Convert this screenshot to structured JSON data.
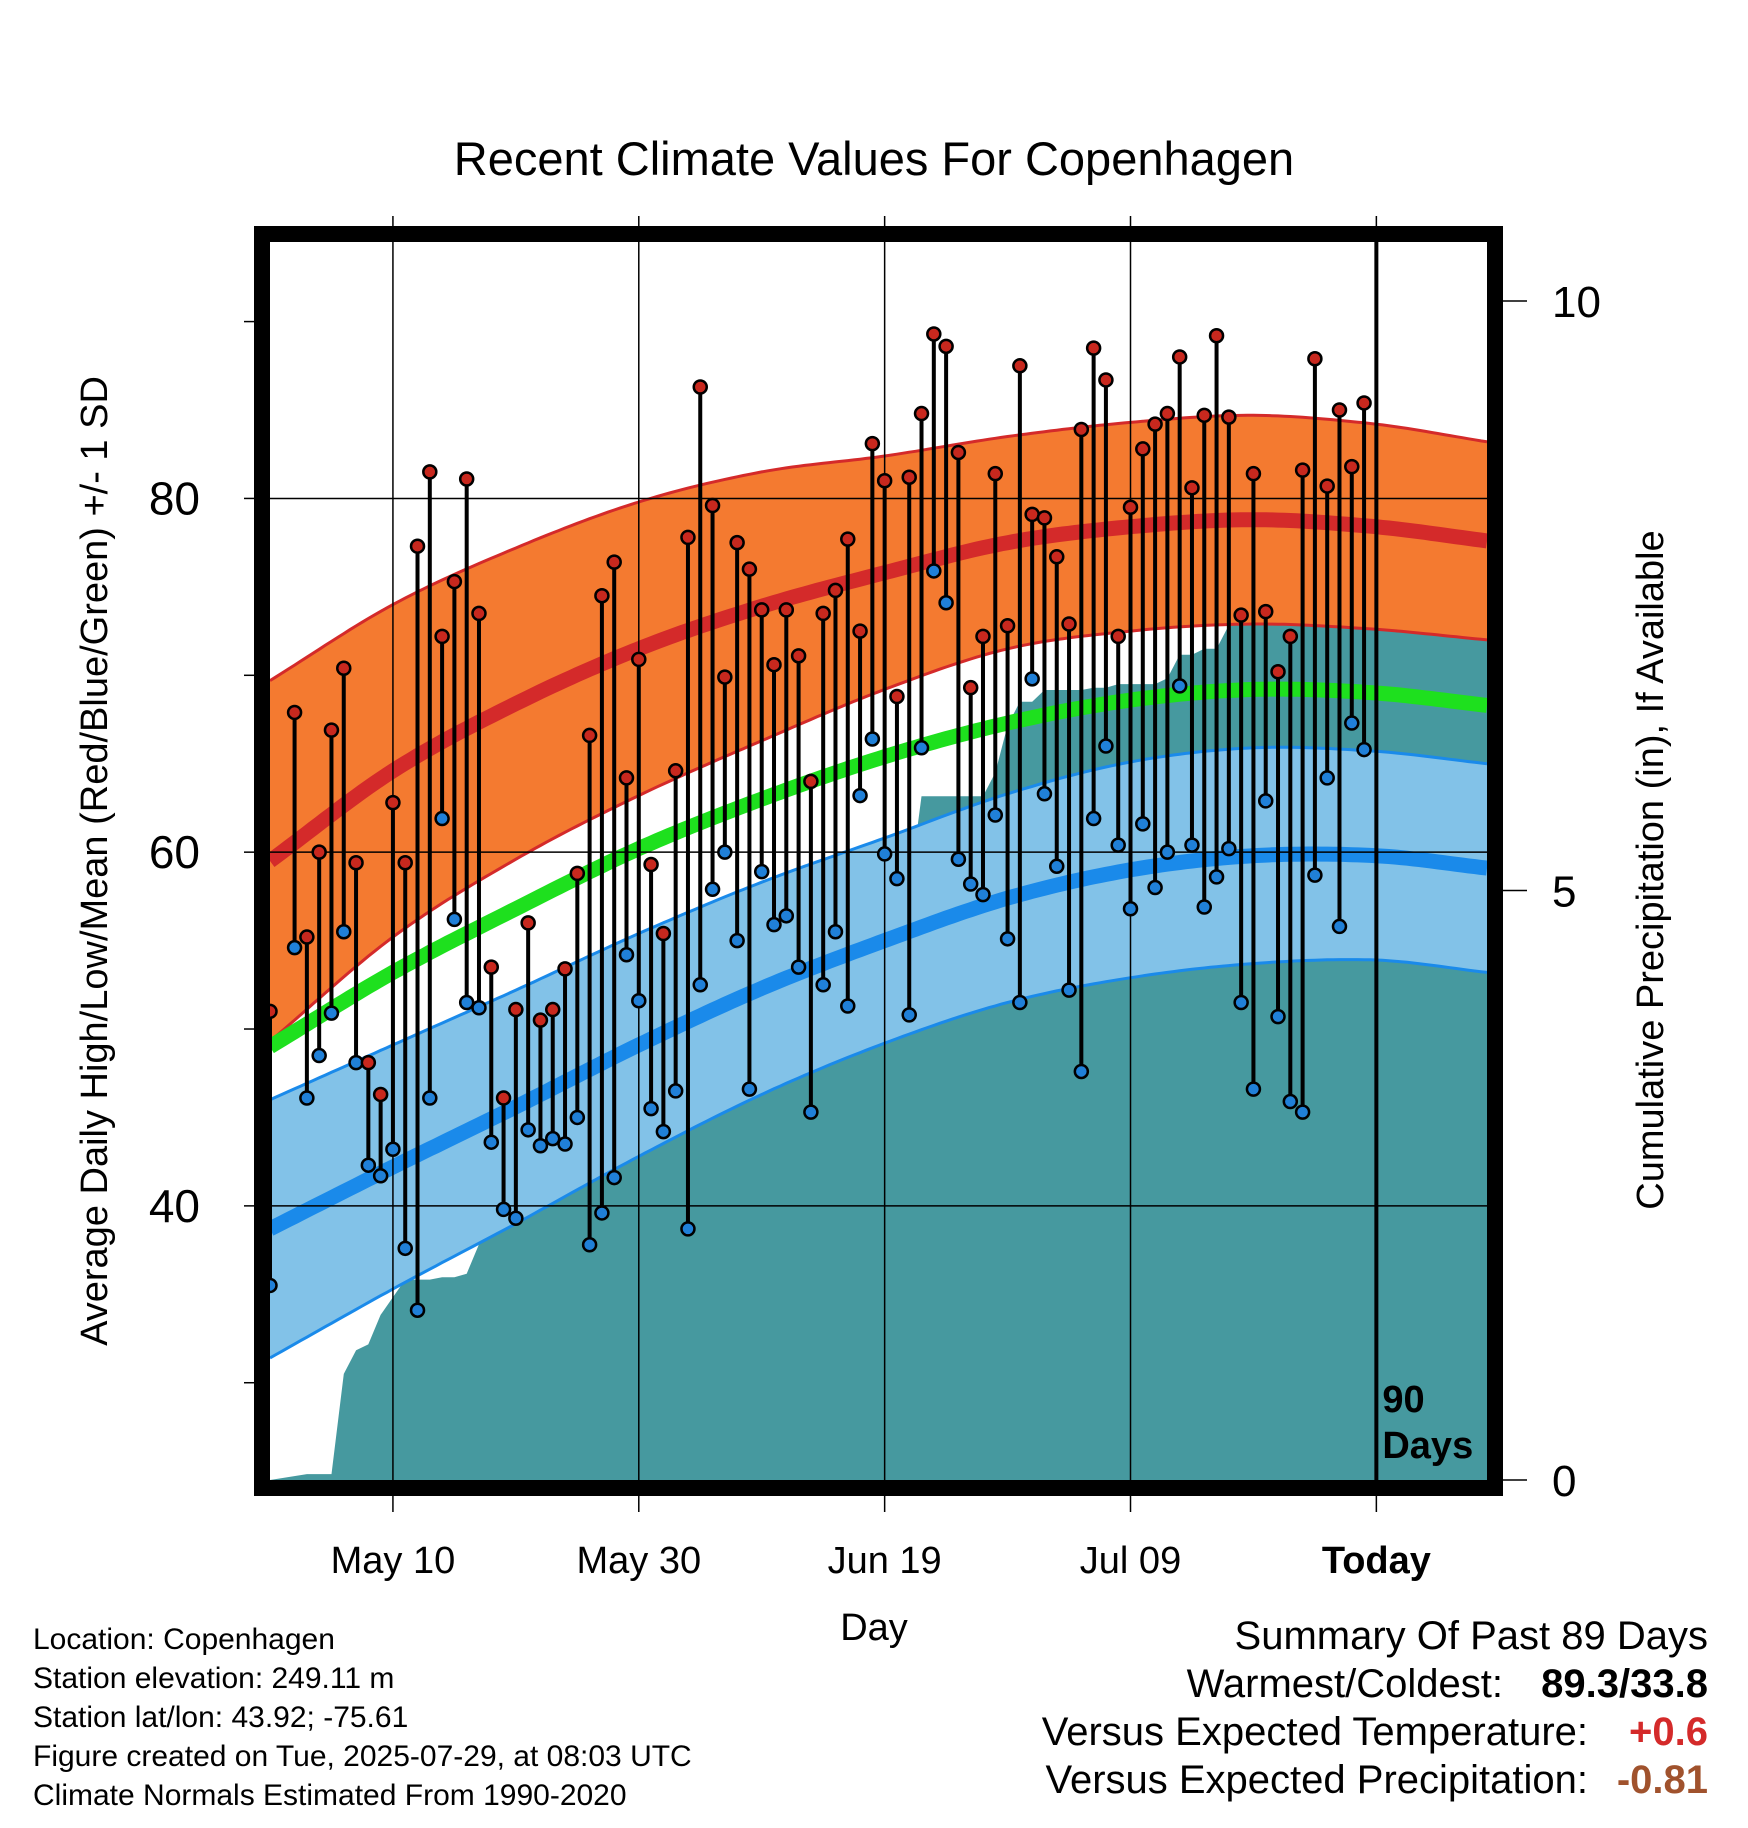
{
  "chart_data": {
    "type": "line",
    "title": "Recent Climate Values For Copenhagen",
    "xlabel": "Day",
    "ylabel": "Average Daily High/Low/Mean (Red/Blue/Green) +/- 1 SD",
    "y2label": "Cumulative Precipitation (in), If Available",
    "x_tick_labels": [
      "May 10",
      "May 30",
      "Jun 19",
      "Jul 09",
      "Today"
    ],
    "x_tick_days": [
      10,
      30,
      50,
      70,
      90
    ],
    "xlim": [
      0,
      99
    ],
    "y_tick_labels": [
      "40",
      "60",
      "80"
    ],
    "y_ticks": [
      40,
      60,
      80
    ],
    "ylim": [
      24.5,
      94.5
    ],
    "y2_ticks": [
      0,
      5,
      10,
      15
    ],
    "y2lim": [
      0,
      10.5
    ],
    "today_label": [
      "90",
      "Days"
    ],
    "today_day": 90,
    "grid": true,
    "colors": {
      "high_band": "#f47a30",
      "high_line": "#d42a2a",
      "low_band": "#82c2e8",
      "low_line": "#1a8aea",
      "mean_line": "#1ee01e",
      "precip": "#46999f",
      "high_dot": "#c8281e",
      "low_dot": "#2080d8"
    },
    "normals": {
      "day": [
        0,
        10,
        20,
        30,
        40,
        50,
        60,
        70,
        80,
        90,
        99
      ],
      "high_mean": [
        59.5,
        64.6,
        68.4,
        71.5,
        73.9,
        75.8,
        77.5,
        78.4,
        78.8,
        78.4,
        77.6
      ],
      "high_sd": [
        10.2,
        9.4,
        8.8,
        8.3,
        7.6,
        6.6,
        6.0,
        5.9,
        5.9,
        5.8,
        5.6
      ],
      "low_mean": [
        38.7,
        42.2,
        45.6,
        49.1,
        52.3,
        55.0,
        57.4,
        59.0,
        59.8,
        59.8,
        59.1
      ],
      "low_sd": [
        7.3,
        6.9,
        6.6,
        6.3,
        6.0,
        5.8,
        5.9,
        6.1,
        6.1,
        5.9,
        5.9
      ],
      "mean": [
        49.0,
        53.2,
        56.8,
        60.2,
        63.0,
        65.4,
        67.3,
        68.6,
        69.2,
        69.0,
        68.3
      ]
    },
    "series": [
      {
        "name": "High",
        "x": [
          0,
          2,
          3,
          4,
          5,
          6,
          7,
          8,
          9,
          10,
          11,
          12,
          13,
          14,
          15,
          16,
          17,
          18,
          19,
          20,
          21,
          22,
          23,
          24,
          25,
          26,
          27,
          28,
          29,
          30,
          31,
          32,
          33,
          34,
          35,
          36,
          37,
          38,
          39,
          40,
          41,
          42,
          43,
          44,
          45,
          46,
          47,
          48,
          49,
          50,
          51,
          52,
          53,
          54,
          55,
          56,
          57,
          58,
          59,
          60,
          61,
          62,
          63,
          64,
          65,
          66,
          67,
          68,
          69,
          70,
          71,
          72,
          73,
          74,
          75,
          76,
          77,
          78,
          79,
          80,
          81,
          82,
          83,
          84,
          85,
          86,
          87,
          88,
          89
        ],
        "values": [
          51.0,
          67.9,
          55.2,
          60.0,
          66.9,
          70.4,
          59.4,
          48.1,
          46.3,
          62.8,
          59.4,
          77.3,
          81.5,
          72.2,
          75.3,
          81.1,
          73.5,
          53.5,
          46.1,
          51.1,
          56.0,
          50.5,
          51.1,
          53.4,
          58.8,
          66.6,
          74.5,
          76.4,
          64.2,
          70.9,
          59.3,
          55.4,
          64.6,
          77.8,
          86.3,
          79.6,
          69.9,
          77.5,
          76.0,
          73.7,
          70.6,
          73.7,
          71.1,
          64.0,
          73.5,
          74.8,
          77.7,
          72.5,
          83.1,
          81.0,
          68.8,
          81.2,
          84.8,
          89.3,
          88.6,
          82.6,
          69.3,
          72.2,
          81.4,
          72.8,
          87.5,
          79.1,
          78.9,
          76.7,
          72.9,
          83.9,
          88.5,
          86.7,
          72.2,
          79.5,
          82.8,
          84.2,
          84.8,
          88.0,
          80.6,
          84.7,
          89.2,
          84.6,
          73.4,
          81.4,
          73.6,
          70.2,
          72.2,
          81.6,
          87.9,
          80.7,
          85.0,
          81.8,
          85.4
        ]
      },
      {
        "name": "Low",
        "x": [
          0,
          2,
          3,
          4,
          5,
          6,
          7,
          8,
          9,
          10,
          11,
          12,
          13,
          14,
          15,
          16,
          17,
          18,
          19,
          20,
          21,
          22,
          23,
          24,
          25,
          26,
          27,
          28,
          29,
          30,
          31,
          32,
          33,
          34,
          35,
          36,
          37,
          38,
          39,
          40,
          41,
          42,
          43,
          44,
          45,
          46,
          47,
          48,
          49,
          50,
          51,
          52,
          53,
          54,
          55,
          56,
          57,
          58,
          59,
          60,
          61,
          62,
          63,
          64,
          65,
          66,
          67,
          68,
          69,
          70,
          71,
          72,
          73,
          74,
          75,
          76,
          77,
          78,
          79,
          80,
          81,
          82,
          83,
          84,
          85,
          86,
          87,
          88,
          89
        ],
        "values": [
          35.5,
          54.6,
          46.1,
          48.5,
          50.9,
          55.5,
          48.1,
          42.3,
          41.7,
          43.2,
          37.6,
          34.1,
          46.1,
          61.9,
          56.2,
          51.5,
          51.2,
          43.6,
          39.8,
          39.3,
          44.3,
          43.4,
          43.8,
          43.5,
          45.0,
          37.8,
          39.6,
          41.6,
          54.2,
          51.6,
          45.5,
          44.2,
          46.5,
          38.7,
          52.5,
          57.9,
          60.0,
          55.0,
          46.6,
          58.9,
          55.9,
          56.4,
          53.5,
          45.3,
          52.5,
          55.5,
          51.3,
          63.2,
          66.4,
          59.9,
          58.5,
          50.8,
          65.9,
          75.9,
          74.1,
          59.6,
          58.2,
          57.6,
          62.1,
          55.1,
          51.5,
          69.8,
          63.3,
          59.2,
          52.2,
          47.6,
          61.9,
          66.0,
          60.4,
          56.8,
          61.6,
          58.0,
          60.0,
          69.4,
          60.4,
          56.9,
          58.6,
          60.2,
          51.5,
          46.6,
          62.9,
          50.7,
          45.9,
          45.3,
          58.7,
          64.2,
          55.8,
          67.3,
          65.8
        ]
      },
      {
        "name": "Cumulative Precipitation",
        "x": [
          0,
          3,
          5,
          6,
          7,
          8,
          9,
          10,
          11,
          12,
          13,
          14,
          15,
          16,
          17,
          18,
          19,
          20,
          21,
          22,
          23,
          24,
          25,
          26,
          27,
          28,
          29,
          30,
          31,
          32,
          33,
          34,
          35,
          36,
          37,
          38,
          39,
          40,
          41,
          42,
          43,
          44,
          45,
          46,
          47,
          48,
          49,
          50,
          51,
          52,
          53,
          54,
          55,
          56,
          57,
          58,
          59,
          60,
          61,
          62,
          63,
          64,
          65,
          66,
          67,
          68,
          69,
          70,
          71,
          72,
          73,
          74,
          75,
          76,
          77,
          78,
          79,
          80,
          81,
          82,
          83,
          84,
          85,
          86,
          87,
          88,
          89,
          90,
          99
        ],
        "values": [
          0.0,
          0.05,
          0.05,
          0.9,
          1.1,
          1.15,
          1.4,
          1.55,
          1.7,
          1.7,
          1.7,
          1.72,
          1.72,
          1.75,
          2.0,
          2.3,
          2.3,
          2.4,
          2.45,
          2.6,
          2.8,
          2.95,
          3.0,
          3.0,
          3.0,
          3.0,
          3.05,
          3.05,
          3.15,
          3.2,
          3.2,
          3.2,
          3.2,
          3.2,
          3.25,
          3.25,
          3.3,
          3.6,
          4.2,
          4.2,
          4.2,
          4.2,
          4.2,
          4.2,
          4.2,
          4.2,
          4.25,
          4.4,
          4.4,
          5.0,
          5.8,
          5.8,
          5.8,
          5.8,
          5.8,
          5.8,
          6.0,
          6.4,
          6.6,
          6.6,
          6.7,
          6.7,
          6.7,
          6.7,
          6.72,
          6.72,
          6.75,
          6.75,
          6.75,
          6.75,
          6.8,
          7.0,
          7.0,
          7.05,
          7.05,
          7.25,
          7.25,
          7.25,
          7.5,
          7.7,
          7.7,
          7.7,
          7.7,
          7.7,
          7.9,
          8.2,
          8.2,
          8.3,
          8.3
        ]
      }
    ]
  },
  "meta": {
    "location": "Location: Copenhagen",
    "elevation": "Station elevation: 249.11 m",
    "latlon": "Station lat/lon: 43.92; -75.61",
    "created": "Figure created on Tue, 2025-07-29, at 08:03 UTC",
    "normals": "Climate Normals Estimated From 1990-2020"
  },
  "summary": {
    "title": "Summary Of Past 89 Days",
    "warm_cold_label": "Warmest/Coldest:",
    "warm_cold_value": "89.3/33.8",
    "temp_label": "Versus Expected Temperature:",
    "temp_value": "+0.6",
    "temp_color": "#d42a2a",
    "precip_label": "Versus Expected Precipitation:",
    "precip_value": "-0.81",
    "precip_color": "#a0522d"
  }
}
